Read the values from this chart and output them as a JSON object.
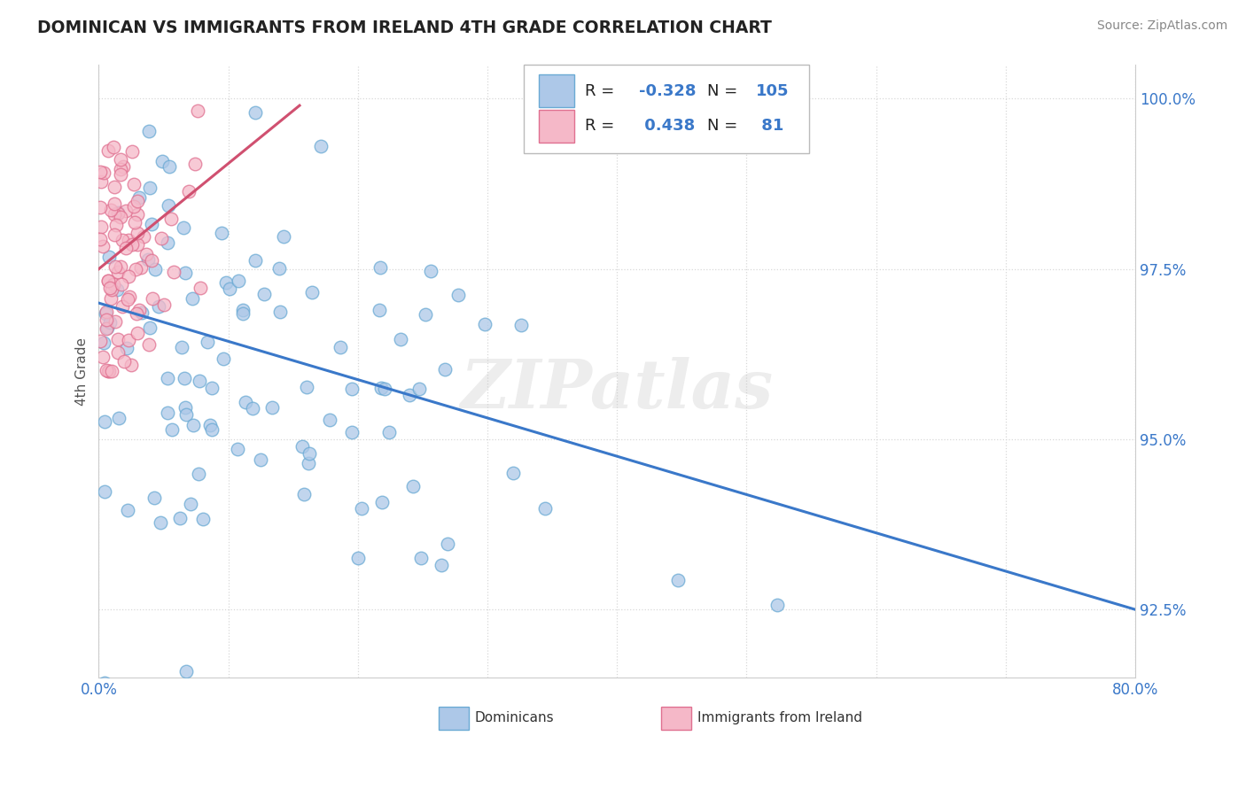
{
  "title": "DOMINICAN VS IMMIGRANTS FROM IRELAND 4TH GRADE CORRELATION CHART",
  "source_text": "Source: ZipAtlas.com",
  "ylabel": "4th Grade",
  "xlim": [
    0.0,
    0.8
  ],
  "ylim": [
    0.915,
    1.005
  ],
  "yticks": [
    0.925,
    0.95,
    0.975,
    1.0
  ],
  "yticklabels": [
    "92.5%",
    "95.0%",
    "97.5%",
    "100.0%"
  ],
  "blue_R": -0.328,
  "blue_N": 105,
  "pink_R": 0.438,
  "pink_N": 81,
  "blue_dot_color": "#adc8e8",
  "blue_edge_color": "#6aaad4",
  "pink_dot_color": "#f5b8c8",
  "pink_edge_color": "#e07090",
  "blue_line_color": "#3a78c9",
  "pink_line_color": "#d05070",
  "legend_label_blue": "Dominicans",
  "legend_label_pink": "Immigrants from Ireland",
  "watermark": "ZIPatlas",
  "background_color": "#ffffff",
  "grid_color": "#d8d8d8",
  "title_color": "#222222",
  "source_color": "#888888",
  "axis_label_color": "#555555",
  "tick_color": "#3a78c9",
  "legend_R_label_color": "#222222",
  "legend_val_color": "#3a78c9"
}
